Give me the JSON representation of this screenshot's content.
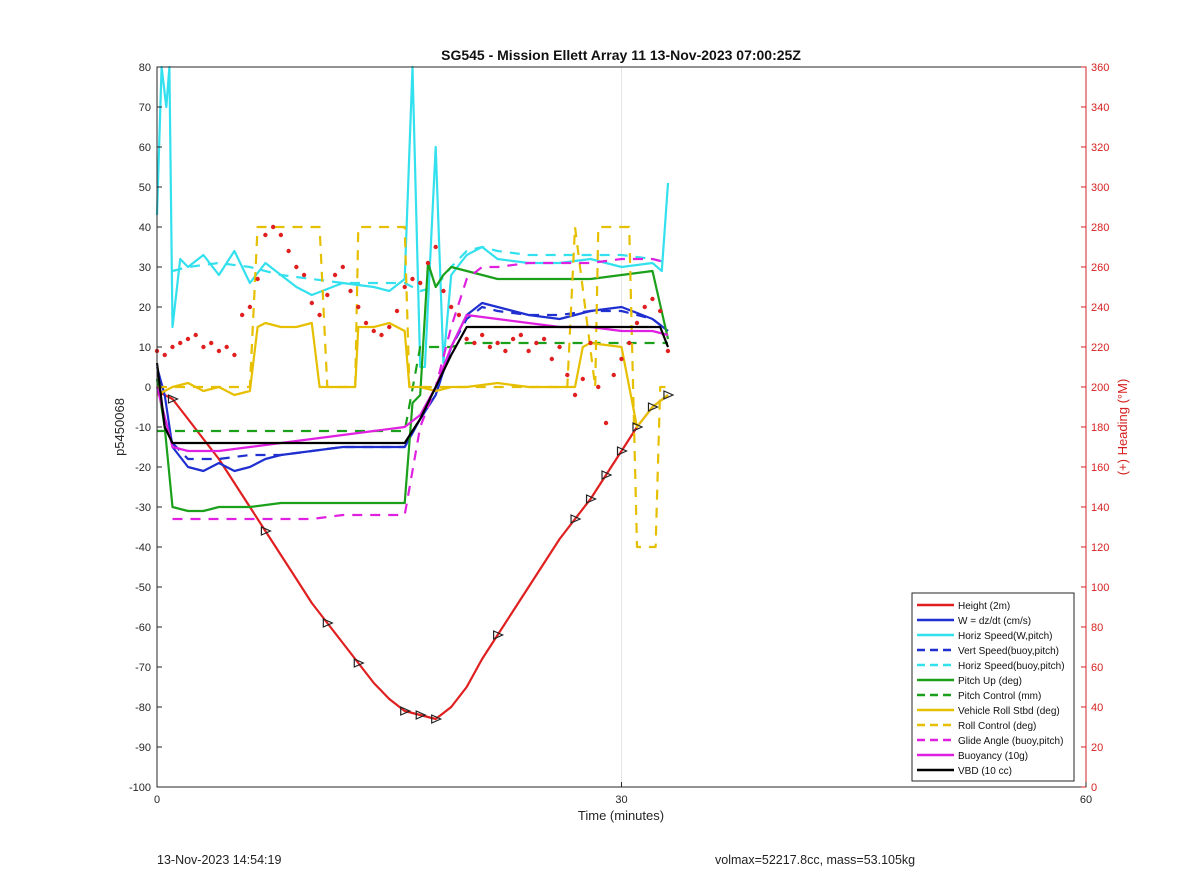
{
  "chart_data": {
    "type": "line",
    "title": "SG545 - Mission Ellett Array 11 13-Nov-2023 07:00:25Z",
    "xlabel": "Time (minutes)",
    "ylabel": "p5450068",
    "y2label": "(+) Heading (°M)",
    "xlim": [
      0,
      60
    ],
    "ylim": [
      -100,
      80
    ],
    "y2lim": [
      0,
      360
    ],
    "x_ticks": [
      "0",
      "30",
      "60"
    ],
    "y_ticks": [
      "80",
      "70",
      "60",
      "50",
      "40",
      "30",
      "20",
      "10",
      "0",
      "-10",
      "-20",
      "-30",
      "-40",
      "-50",
      "-60",
      "-70",
      "-80",
      "-90",
      "-100"
    ],
    "y2_ticks": [
      "360",
      "340",
      "320",
      "300",
      "280",
      "260",
      "240",
      "220",
      "200",
      "180",
      "160",
      "140",
      "120",
      "100",
      "80",
      "60",
      "40",
      "20",
      "0"
    ],
    "grid": "x-only",
    "legend_position": "bottom-right",
    "colors": {
      "axis": "#262626",
      "heading_axis": "#d62020",
      "grid": "#e6e6e6"
    },
    "series": [
      {
        "name": "Height (2m)",
        "style": "solid",
        "color": "#e02020",
        "x": [
          0,
          1,
          2,
          3,
          4,
          5,
          6,
          7,
          8,
          9,
          10,
          11,
          12,
          13,
          14,
          15,
          16,
          17,
          18,
          19,
          20,
          21,
          22,
          23,
          24,
          25,
          26,
          27,
          28,
          29,
          30,
          31,
          32,
          33
        ],
        "y": [
          -1,
          -3,
          -8,
          -13,
          -18,
          -24,
          -30,
          -36,
          -42,
          -48,
          -54,
          -59,
          -64,
          -69,
          -74,
          -78,
          -81,
          -82,
          -83,
          -80,
          -75,
          -68,
          -62,
          -56,
          -50,
          -44,
          -38,
          -33,
          -28,
          -22,
          -16,
          -10,
          -5,
          -2
        ]
      },
      {
        "name": "W = dz/dt (cm/s)",
        "style": "solid",
        "color": "#1f2fd0",
        "x": [
          0,
          0.5,
          1,
          2,
          3,
          4,
          5,
          6,
          7,
          8,
          10,
          12,
          14,
          16,
          17,
          18,
          19,
          20,
          21,
          22,
          24,
          26,
          28,
          30,
          32,
          33
        ],
        "y": [
          5,
          -2,
          -15,
          -20,
          -21,
          -19,
          -21,
          -20,
          -18,
          -17,
          -16,
          -15,
          -15,
          -15,
          -8,
          -2,
          10,
          18,
          21,
          20,
          18,
          17,
          19,
          20,
          17,
          14
        ]
      },
      {
        "name": "Horiz Speed(W,pitch)",
        "style": "solid",
        "color": "#33e0ee",
        "x": [
          0,
          0.3,
          0.6,
          0.8,
          1,
          1.5,
          2,
          3,
          4,
          5,
          6,
          7,
          8,
          9,
          10,
          12,
          14,
          15,
          16,
          16.5,
          17,
          17.3,
          18,
          18.5,
          19,
          20,
          21,
          22,
          24,
          26,
          28,
          30,
          32,
          32.6,
          33
        ],
        "y": [
          43,
          80,
          70,
          80,
          15,
          32,
          30,
          33,
          28,
          34,
          26,
          31,
          28,
          25,
          23,
          26,
          25,
          24,
          27,
          80,
          5,
          5,
          60,
          6,
          28,
          33,
          35,
          32,
          31,
          31,
          32,
          30,
          31,
          29,
          51
        ]
      },
      {
        "name": "Vert Speed(buoy,pitch)",
        "style": "dashed",
        "color": "#1f2fd0",
        "x": [
          1,
          2,
          4,
          6,
          8,
          10,
          12,
          14,
          16,
          17,
          18,
          19,
          20,
          21,
          22,
          24,
          26,
          28,
          30,
          32,
          33
        ],
        "y": [
          -14,
          -18,
          -18,
          -17,
          -17,
          -16,
          -15,
          -15,
          -15,
          -8,
          -2,
          10,
          17,
          20,
          19,
          18,
          18,
          19,
          19,
          17,
          14
        ]
      },
      {
        "name": "Horiz Speed(buoy,pitch)",
        "style": "dashed",
        "color": "#33e0ee",
        "x": [
          1,
          2,
          4,
          6,
          8,
          10,
          12,
          14,
          16,
          17,
          18,
          19,
          20,
          21,
          22,
          24,
          26,
          28,
          30,
          32,
          33
        ],
        "y": [
          29,
          30,
          31,
          30,
          28,
          27,
          26,
          26,
          26,
          24,
          25,
          30,
          34,
          35,
          34,
          33,
          33,
          33,
          33,
          32,
          31
        ]
      },
      {
        "name": "Pitch Up (deg)",
        "style": "solid",
        "color": "#1aa01a",
        "x": [
          0,
          0.5,
          1,
          2,
          3,
          4,
          6,
          8,
          10,
          12,
          14,
          16,
          16.5,
          17,
          17.5,
          18,
          18.5,
          19,
          20,
          22,
          24,
          26,
          28,
          30,
          32,
          33
        ],
        "y": [
          2,
          -10,
          -30,
          -31,
          -31,
          -30,
          -30,
          -29,
          -29,
          -29,
          -29,
          -29,
          -4,
          -2,
          31,
          25,
          28,
          30,
          29,
          27,
          27,
          27,
          27,
          28,
          29,
          12
        ]
      },
      {
        "name": "Pitch Control (mm)",
        "style": "dashed",
        "color": "#1aa01a",
        "x": [
          0,
          1,
          16,
          17,
          19,
          20,
          33
        ],
        "y": [
          -11,
          -11,
          -11,
          10,
          10,
          11,
          11
        ]
      },
      {
        "name": "Vehicle Roll Stbd (deg)",
        "style": "solid",
        "color": "#e6c000",
        "x": [
          0,
          1,
          2,
          3,
          4,
          5,
          6,
          6.5,
          7,
          8,
          9,
          10,
          10.5,
          11,
          12,
          12.8,
          13,
          14,
          15,
          16,
          16.3,
          17,
          18,
          19,
          20,
          22,
          24,
          26,
          27,
          27.5,
          28,
          30,
          31,
          32,
          33
        ],
        "y": [
          -2,
          0,
          1,
          -1,
          0,
          -2,
          -1,
          15,
          16,
          15,
          15,
          16,
          0,
          0,
          0,
          0,
          15,
          15,
          16,
          14,
          0,
          0,
          -1,
          0,
          0,
          1,
          0,
          0,
          0,
          10,
          11,
          10,
          -10,
          -5,
          -2
        ]
      },
      {
        "name": "Roll Control (deg)",
        "style": "dashed",
        "color": "#e6c000",
        "x": [
          0,
          6,
          6.5,
          10.5,
          11,
          12.8,
          13,
          16,
          16.3,
          26.5,
          27,
          28.3,
          28.5,
          30.5,
          31,
          32.2,
          32.5,
          33
        ],
        "y": [
          0,
          0,
          40,
          40,
          0,
          0,
          40,
          40,
          0,
          0,
          40,
          0,
          40,
          40,
          -40,
          -40,
          0,
          0
        ]
      },
      {
        "name": "Glide Angle (buoy,pitch)",
        "style": "dashed",
        "color": "#e020e0",
        "x": [
          1,
          2,
          4,
          6,
          8,
          10,
          12,
          14,
          16,
          17,
          18,
          19,
          20,
          21,
          22,
          24,
          26,
          28,
          30,
          32,
          33
        ],
        "y": [
          -33,
          -33,
          -33,
          -33,
          -33,
          -33,
          -32,
          -32,
          -32,
          -10,
          0,
          15,
          27,
          30,
          30,
          31,
          31,
          31,
          32,
          32,
          31
        ]
      },
      {
        "name": "Buoyancy (10g)",
        "style": "solid",
        "color": "#e020e0",
        "x": [
          0,
          1,
          2,
          4,
          6,
          8,
          10,
          12,
          14,
          16,
          17,
          18,
          19,
          20,
          22,
          24,
          26,
          28,
          30,
          32,
          33
        ],
        "y": [
          0,
          -15,
          -16,
          -16,
          -15,
          -14,
          -13,
          -12,
          -11,
          -10,
          -7,
          0,
          10,
          18,
          17,
          16,
          15,
          15,
          14,
          14,
          13
        ]
      },
      {
        "name": "VBD (10 cc)",
        "style": "solid",
        "color": "#000000",
        "x": [
          0,
          0.5,
          1,
          2,
          16,
          17,
          19,
          20,
          21,
          32.5,
          33
        ],
        "y": [
          6,
          -10,
          -14,
          -14,
          -14,
          -8,
          8,
          15,
          15,
          15,
          10
        ]
      }
    ],
    "heading": {
      "name": "Heading",
      "style": "dotted",
      "color": "#e02020",
      "x": [
        0,
        0.5,
        1,
        1.5,
        2,
        2.5,
        3,
        3.5,
        4,
        4.5,
        5,
        5.5,
        6,
        6.5,
        7,
        7.5,
        8,
        8.5,
        9,
        9.5,
        10,
        10.5,
        11,
        11.5,
        12,
        12.5,
        13,
        13.5,
        14,
        14.5,
        15,
        15.5,
        16,
        16.5,
        17,
        17.5,
        18,
        18.5,
        19,
        19.5,
        20,
        20.5,
        21,
        21.5,
        22,
        22.5,
        23,
        23.5,
        24,
        24.5,
        25,
        25.5,
        26,
        26.5,
        27,
        27.5,
        28,
        28.5,
        29,
        29.5,
        30,
        30.5,
        31,
        31.5,
        32,
        32.5,
        33
      ],
      "y": [
        218,
        216,
        220,
        222,
        224,
        226,
        220,
        222,
        218,
        220,
        216,
        236,
        240,
        254,
        276,
        280,
        276,
        268,
        260,
        256,
        242,
        236,
        246,
        256,
        260,
        248,
        240,
        232,
        228,
        226,
        230,
        238,
        250,
        254,
        252,
        262,
        270,
        248,
        240,
        236,
        224,
        222,
        226,
        220,
        222,
        218,
        224,
        226,
        218,
        222,
        224,
        214,
        220,
        206,
        196,
        204,
        222,
        200,
        182,
        206,
        214,
        222,
        232,
        240,
        244,
        238,
        218
      ]
    },
    "legend": [
      "Height (2m)",
      "W = dz/dt (cm/s)",
      "Horiz Speed(W,pitch)",
      "Vert Speed(buoy,pitch)",
      "Horiz Speed(buoy,pitch)",
      "Pitch Up (deg)",
      "Pitch Control (mm)",
      "Vehicle Roll Stbd (deg)",
      "Roll Control (deg)",
      "Glide Angle (buoy,pitch)",
      "Buoyancy (10g)",
      "VBD (10 cc)"
    ]
  },
  "footer": {
    "left": "13-Nov-2023 14:54:19",
    "right": "volmax=52217.8cc, mass=53.105kg"
  }
}
